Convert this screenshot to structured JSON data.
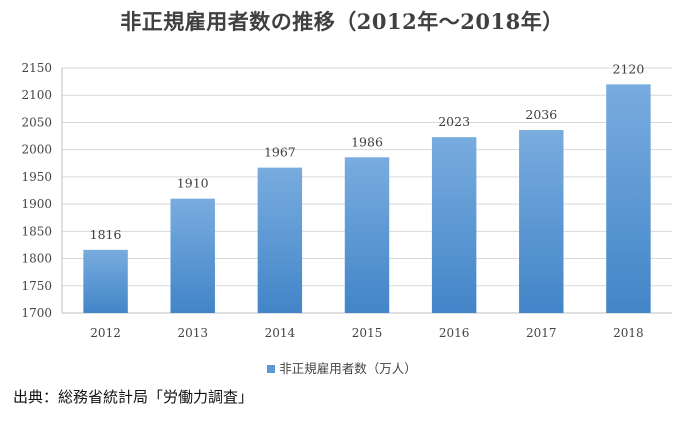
{
  "chart_data": {
    "type": "bar",
    "title": "非正規雇用者数の推移（2012年～2018年）",
    "categories": [
      "2012",
      "2013",
      "2014",
      "2015",
      "2016",
      "2017",
      "2018"
    ],
    "series": [
      {
        "name": "非正規雇用者数（万人）",
        "values": [
          1816,
          1910,
          1967,
          1986,
          2023,
          2036,
          2120
        ]
      }
    ],
    "data_labels": [
      "1816",
      "1910",
      "1967",
      "1986",
      "2023",
      "2036",
      "2120"
    ],
    "ylim": [
      1700,
      2150
    ],
    "yticks": [
      1700,
      1750,
      1800,
      1850,
      1900,
      1950,
      2000,
      2050,
      2100,
      2150
    ],
    "grid": true,
    "legend": "bottom",
    "colors": {
      "bar_top": "#79acdf",
      "bar_bottom": "#4285c8",
      "swatch": "#5b9bd5",
      "grid": "#d9d9d9",
      "axis": "#bfbfbf"
    }
  },
  "source_note": "出典：総務省統計局「労働力調査」"
}
